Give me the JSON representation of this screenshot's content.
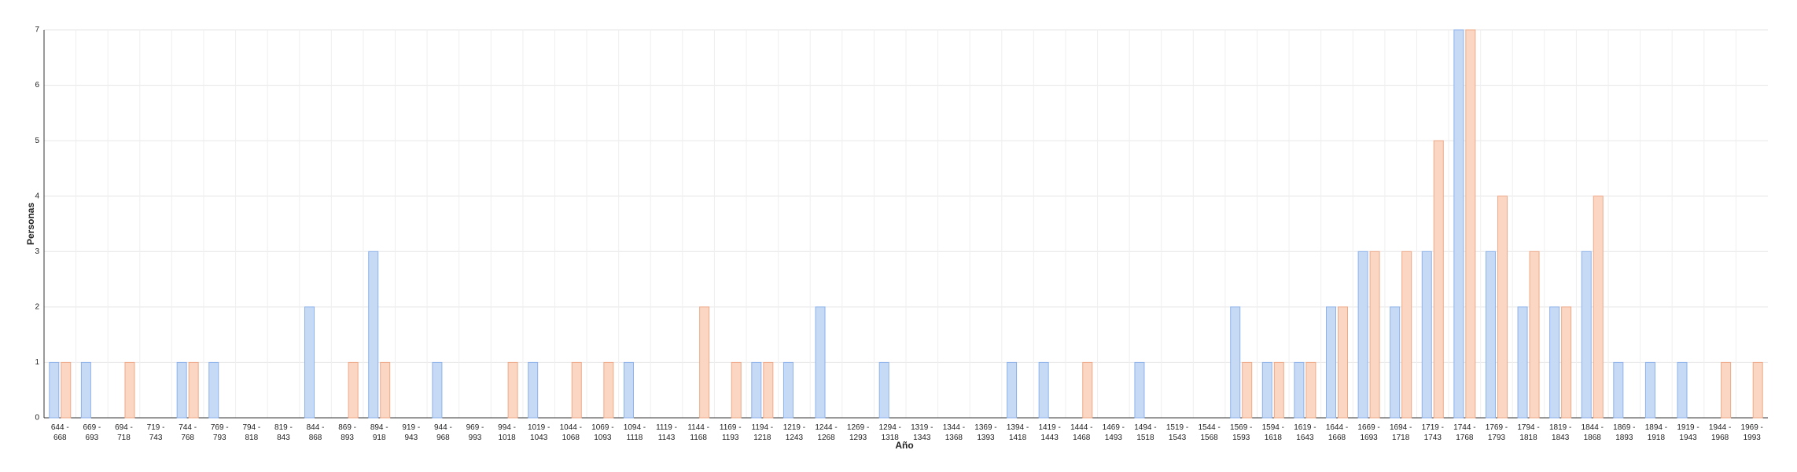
{
  "chart_data": {
    "type": "bar",
    "x_label": "Año",
    "y_label": "Personas",
    "categories": [
      "644 - 668",
      "669 - 693",
      "694 - 718",
      "719 - 743",
      "744 - 768",
      "769 - 793",
      "794 - 818",
      "819 - 843",
      "844 - 868",
      "869 - 893",
      "894 - 918",
      "919 - 943",
      "944 - 968",
      "969 - 993",
      "994 - 1018",
      "1019 - 1043",
      "1044 - 1068",
      "1069 - 1093",
      "1094 - 1118",
      "1119 - 1143",
      "1144 - 1168",
      "1169 - 1193",
      "1194 - 1218",
      "1219 - 1243",
      "1244 - 1268",
      "1269 - 1293",
      "1294 - 1318",
      "1319 - 1343",
      "1344 - 1368",
      "1369 - 1393",
      "1394 - 1418",
      "1419 - 1443",
      "1444 - 1468",
      "1469 - 1493",
      "1494 - 1518",
      "1519 - 1543",
      "1544 - 1568",
      "1569 - 1593",
      "1594 - 1618",
      "1619 - 1643",
      "1644 - 1668",
      "1669 - 1693",
      "1694 - 1718",
      "1719 - 1743",
      "1744 - 1768",
      "1769 - 1793",
      "1794 - 1818",
      "1819 - 1843",
      "1844 - 1868",
      "1869 - 1893",
      "1894 - 1918",
      "1919 - 1943",
      "1944 - 1968",
      "1969 - 1993"
    ],
    "series": [
      {
        "color": "#c6daf6",
        "values": [
          1,
          1,
          0,
          0,
          1,
          1,
          0,
          0,
          2,
          0,
          3,
          0,
          1,
          0,
          0,
          1,
          0,
          0,
          1,
          0,
          0,
          0,
          1,
          1,
          2,
          0,
          1,
          0,
          0,
          0,
          1,
          1,
          0,
          0,
          1,
          0,
          0,
          2,
          1,
          1,
          2,
          3,
          2,
          3,
          7,
          3,
          2,
          2,
          3,
          1,
          1,
          1,
          0,
          0
        ]
      },
      {
        "color": "#fbd6c3",
        "values": [
          1,
          0,
          1,
          0,
          1,
          0,
          0,
          0,
          0,
          1,
          1,
          0,
          0,
          0,
          1,
          0,
          1,
          1,
          0,
          0,
          2,
          1,
          1,
          0,
          0,
          0,
          0,
          0,
          0,
          0,
          0,
          0,
          1,
          0,
          0,
          0,
          0,
          1,
          1,
          1,
          2,
          3,
          3,
          5,
          7,
          4,
          3,
          2,
          4,
          0,
          0,
          0,
          1,
          1
        ]
      }
    ],
    "ylim": [
      0,
      7
    ],
    "yticks": [
      0,
      1,
      2,
      3,
      4,
      5,
      6,
      7
    ],
    "grid": true
  }
}
